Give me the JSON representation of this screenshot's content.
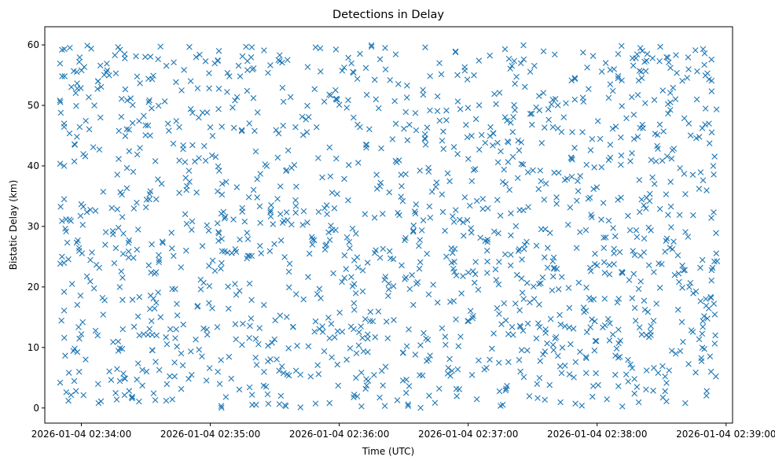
{
  "chart_data": {
    "type": "scatter",
    "title": "Detections in Delay",
    "xlabel": "Time (UTC)",
    "ylabel": "Bistatic Delay (km)",
    "marker": "x",
    "color": "#1f77b4",
    "grid": false,
    "legend": "none",
    "x_start": "2026-01-04 02:33:50",
    "x_end": "2026-01-04 02:38:56",
    "xlim": [
      "2026-01-04 02:33:43",
      "2026-01-04 02:39:03"
    ],
    "ylim": [
      -2.5,
      63
    ],
    "x_ticks": [
      "2026-01-04 02:34:00",
      "2026-01-04 02:35:00",
      "2026-01-04 02:36:00",
      "2026-01-04 02:37:00",
      "2026-01-04 02:38:00",
      "2026-01-04 02:39:00"
    ],
    "y_ticks": [
      "0",
      "10",
      "20",
      "30",
      "40",
      "50",
      "60"
    ],
    "y_tick_values": [
      0,
      10,
      20,
      30,
      40,
      50,
      60
    ],
    "point_count": 1500,
    "series": [
      {
        "points": [
          [
            "2026-01-04 02:33:51",
            59.2
          ],
          [
            "2026-01-04 02:33:52",
            47.0
          ],
          [
            "2026-01-04 02:33:52",
            40.0
          ],
          [
            "2026-01-04 02:33:52",
            34.5
          ],
          [
            "2026-01-04 02:33:51",
            30.9
          ],
          [
            "2026-01-04 02:33:51",
            25.0
          ],
          [
            "2026-01-04 02:33:52",
            19.2
          ],
          [
            "2026-01-04 02:33:52",
            16.1
          ],
          [
            "2026-01-04 02:33:53",
            2.6
          ],
          [
            "2026-01-04 02:33:54",
            1.2
          ],
          [
            "2026-01-04 02:33:57",
            43.5
          ],
          [
            "2026-01-04 02:33:59",
            57.2
          ],
          [
            "2026-01-04 02:34:00",
            12.2
          ],
          [
            "2026-01-04 02:34:02",
            8.0
          ],
          [
            "2026-01-04 02:34:08",
            0.8
          ],
          [
            "2026-01-04 02:34:18",
            59.2
          ],
          [
            "2026-01-04 02:34:20",
            4.9
          ],
          [
            "2026-01-04 02:34:27",
            12.0
          ],
          [
            "2026-01-04 02:34:29",
            12.2
          ],
          [
            "2026-01-04 02:34:31",
            12.1
          ],
          [
            "2026-01-04 02:34:33",
            12.1
          ],
          [
            "2026-01-04 02:34:35",
            12.0
          ],
          [
            "2026-01-04 02:34:43",
            57.1
          ],
          [
            "2026-01-04 02:35:04",
            59.0
          ],
          [
            "2026-01-04 02:35:08",
            25.7
          ],
          [
            "2026-01-04 02:35:10",
            25.6
          ],
          [
            "2026-01-04 02:35:12",
            25.8
          ],
          [
            "2026-01-04 02:35:16",
            30.8
          ],
          [
            "2026-01-04 02:35:25",
            59.1
          ],
          [
            "2026-01-04 02:35:27",
            0.7
          ],
          [
            "2026-01-04 02:35:49",
            59.6
          ],
          [
            "2026-01-04 02:36:15",
            59.7
          ],
          [
            "2026-01-04 02:36:32",
            0.6
          ],
          [
            "2026-01-04 02:36:40",
            59.6
          ],
          [
            "2026-01-04 02:37:05",
            57.4
          ],
          [
            "2026-01-04 02:37:19",
            57.7
          ],
          [
            "2026-01-04 02:37:43",
            13.8
          ],
          [
            "2026-01-04 02:37:45",
            13.5
          ],
          [
            "2026-01-04 02:37:47",
            13.3
          ],
          [
            "2026-01-04 02:37:49",
            13.1
          ],
          [
            "2026-01-04 02:38:21",
            59.0
          ],
          [
            "2026-01-04 02:38:41",
            0.8
          ],
          [
            "2026-01-04 02:38:50",
            58.6
          ],
          [
            "2026-01-04 02:38:52",
            47.0
          ],
          [
            "2026-01-04 02:38:54",
            40.0
          ],
          [
            "2026-01-04 02:38:53",
            18.2
          ],
          [
            "2026-01-04 02:38:55",
            12.0
          ],
          [
            "2026-01-04 02:38:53",
            6.0
          ],
          [
            "2026-01-04 02:38:51",
            2.8
          ]
        ]
      }
    ]
  }
}
